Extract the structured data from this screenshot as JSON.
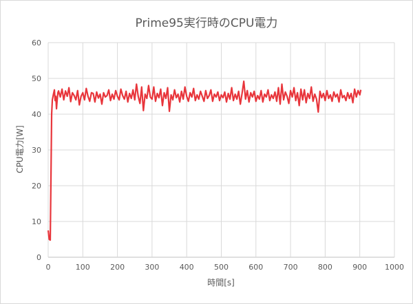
{
  "chart_data": {
    "type": "line",
    "title": "Prime95実行時のCPU電力",
    "xlabel": "時間[s]",
    "ylabel": "CPU電力[W]",
    "xlim": [
      0,
      1000
    ],
    "ylim": [
      0,
      60
    ],
    "x_ticks": [
      0,
      100,
      200,
      300,
      400,
      500,
      600,
      700,
      800,
      900,
      1000
    ],
    "y_ticks": [
      0,
      10,
      20,
      30,
      40,
      50,
      60
    ],
    "grid": true,
    "legend": "none",
    "series": [
      {
        "color": "#e8353b",
        "points": [
          [
            0,
            7.5
          ],
          [
            3,
            5
          ],
          [
            6,
            4.8
          ],
          [
            8,
            22
          ],
          [
            10,
            40
          ],
          [
            12,
            44
          ],
          [
            15,
            45.5
          ],
          [
            18,
            46.8
          ],
          [
            20,
            43.8
          ],
          [
            22,
            45
          ],
          [
            24,
            41.5
          ],
          [
            26,
            44
          ],
          [
            28,
            46
          ],
          [
            30,
            46.5
          ],
          [
            35,
            44.8
          ],
          [
            40,
            47
          ],
          [
            45,
            44
          ],
          [
            50,
            46.5
          ],
          [
            55,
            45
          ],
          [
            60,
            47.4
          ],
          [
            65,
            43.5
          ],
          [
            70,
            46
          ],
          [
            75,
            45.2
          ],
          [
            80,
            44
          ],
          [
            85,
            46.6
          ],
          [
            90,
            42.6
          ],
          [
            95,
            45
          ],
          [
            100,
            46
          ],
          [
            105,
            44
          ],
          [
            110,
            47.2
          ],
          [
            115,
            45
          ],
          [
            120,
            43.6
          ],
          [
            125,
            46
          ],
          [
            130,
            45.8
          ],
          [
            135,
            43.4
          ],
          [
            140,
            46.2
          ],
          [
            145,
            44.5
          ],
          [
            150,
            45.6
          ],
          [
            155,
            42.8
          ],
          [
            160,
            46
          ],
          [
            165,
            44.8
          ],
          [
            170,
            45.2
          ],
          [
            175,
            46.8
          ],
          [
            180,
            43.8
          ],
          [
            185,
            45.6
          ],
          [
            190,
            44.2
          ],
          [
            195,
            46.6
          ],
          [
            200,
            45
          ],
          [
            205,
            44
          ],
          [
            210,
            47
          ],
          [
            215,
            45.2
          ],
          [
            220,
            44.2
          ],
          [
            225,
            46.4
          ],
          [
            230,
            43.4
          ],
          [
            235,
            45.8
          ],
          [
            240,
            44.4
          ],
          [
            245,
            46.8
          ],
          [
            250,
            44
          ],
          [
            255,
            48.4
          ],
          [
            260,
            45
          ],
          [
            265,
            43
          ],
          [
            270,
            47.6
          ],
          [
            275,
            41
          ],
          [
            280,
            45.6
          ],
          [
            285,
            44.4
          ],
          [
            290,
            48
          ],
          [
            295,
            44.8
          ],
          [
            300,
            44.2
          ],
          [
            305,
            47.6
          ],
          [
            310,
            43.6
          ],
          [
            315,
            45.8
          ],
          [
            320,
            44.6
          ],
          [
            325,
            47
          ],
          [
            330,
            42.4
          ],
          [
            335,
            46
          ],
          [
            340,
            44.4
          ],
          [
            345,
            47.4
          ],
          [
            350,
            40.8
          ],
          [
            355,
            45.4
          ],
          [
            360,
            44
          ],
          [
            365,
            46.8
          ],
          [
            370,
            44.6
          ],
          [
            375,
            45.6
          ],
          [
            380,
            43.4
          ],
          [
            385,
            46.4
          ],
          [
            390,
            44.2
          ],
          [
            395,
            47.6
          ],
          [
            400,
            45
          ],
          [
            405,
            43.6
          ],
          [
            410,
            46
          ],
          [
            415,
            44.8
          ],
          [
            420,
            47.2
          ],
          [
            425,
            43.8
          ],
          [
            430,
            45.4
          ],
          [
            435,
            44.2
          ],
          [
            440,
            46.4
          ],
          [
            445,
            45
          ],
          [
            450,
            43.6
          ],
          [
            455,
            46.6
          ],
          [
            460,
            44.4
          ],
          [
            465,
            45.2
          ],
          [
            470,
            46.8
          ],
          [
            475,
            43.6
          ],
          [
            480,
            45.6
          ],
          [
            485,
            44.8
          ],
          [
            490,
            46.2
          ],
          [
            495,
            43.8
          ],
          [
            500,
            45.4
          ],
          [
            505,
            44.6
          ],
          [
            510,
            46.2
          ],
          [
            515,
            43.4
          ],
          [
            520,
            45.8
          ],
          [
            525,
            44.2
          ],
          [
            530,
            47.4
          ],
          [
            535,
            43.8
          ],
          [
            540,
            45.6
          ],
          [
            545,
            44.2
          ],
          [
            550,
            46.4
          ],
          [
            555,
            42.8
          ],
          [
            560,
            45.8
          ],
          [
            565,
            49.2
          ],
          [
            570,
            44.2
          ],
          [
            575,
            46.6
          ],
          [
            580,
            43.4
          ],
          [
            585,
            46
          ],
          [
            590,
            44.8
          ],
          [
            595,
            46.4
          ],
          [
            600,
            43.6
          ],
          [
            605,
            45.2
          ],
          [
            610,
            44.2
          ],
          [
            615,
            46.6
          ],
          [
            620,
            43.4
          ],
          [
            625,
            45.6
          ],
          [
            630,
            44.8
          ],
          [
            635,
            46.8
          ],
          [
            640,
            43.8
          ],
          [
            645,
            45.4
          ],
          [
            650,
            44.4
          ],
          [
            655,
            46.2
          ],
          [
            660,
            43.6
          ],
          [
            665,
            47.4
          ],
          [
            670,
            42.8
          ],
          [
            675,
            48.4
          ],
          [
            680,
            44
          ],
          [
            685,
            46.2
          ],
          [
            690,
            45
          ],
          [
            695,
            43
          ],
          [
            700,
            46.6
          ],
          [
            705,
            44.8
          ],
          [
            710,
            47.4
          ],
          [
            715,
            43.8
          ],
          [
            720,
            46
          ],
          [
            725,
            42.4
          ],
          [
            730,
            47
          ],
          [
            735,
            44
          ],
          [
            740,
            46.8
          ],
          [
            745,
            43.2
          ],
          [
            750,
            45.8
          ],
          [
            755,
            44.4
          ],
          [
            760,
            47.6
          ],
          [
            765,
            43.6
          ],
          [
            770,
            45.6
          ],
          [
            775,
            44.2
          ],
          [
            780,
            40.6
          ],
          [
            785,
            46.4
          ],
          [
            790,
            44.6
          ],
          [
            795,
            45.8
          ],
          [
            800,
            43.8
          ],
          [
            805,
            46.6
          ],
          [
            810,
            44.4
          ],
          [
            815,
            45.4
          ],
          [
            820,
            43.6
          ],
          [
            825,
            46.2
          ],
          [
            830,
            44.8
          ],
          [
            835,
            45.6
          ],
          [
            840,
            43.4
          ],
          [
            845,
            46.8
          ],
          [
            850,
            44.6
          ],
          [
            855,
            45.2
          ],
          [
            860,
            43.8
          ],
          [
            865,
            46
          ],
          [
            870,
            44.4
          ],
          [
            875,
            45.8
          ],
          [
            880,
            43.2
          ],
          [
            885,
            47
          ],
          [
            890,
            44.8
          ],
          [
            895,
            46.6
          ],
          [
            900,
            45.4
          ],
          [
            903,
            46.8
          ]
        ]
      }
    ]
  }
}
